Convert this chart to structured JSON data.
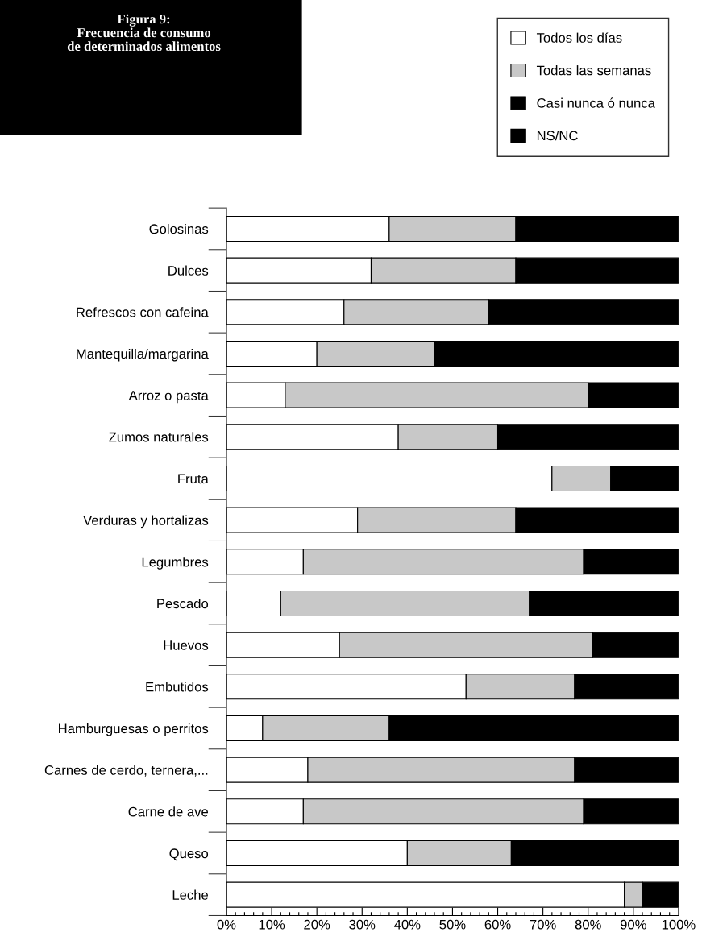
{
  "chart_data": {
    "type": "bar",
    "orientation": "horizontal",
    "stacked": true,
    "title": "Figura 9:\nFrecuencia de consumo\nde determinados alimentos",
    "categories": [
      "Golosinas",
      "Dulces",
      "Refrescos con cafeina",
      "Mantequilla/margarina",
      "Arroz o pasta",
      "Zumos naturales",
      "Fruta",
      "Verduras y hortalizas",
      "Legumbres",
      "Pescado",
      "Huevos",
      "Embutidos",
      "Hamburguesas o perritos",
      "Carnes de cerdo, ternera,...",
      "Carne de ave",
      "Queso",
      "Leche"
    ],
    "series": [
      {
        "name": "Todos los días",
        "color": "#ffffff",
        "values": [
          36,
          32,
          26,
          20,
          13,
          38,
          72,
          29,
          17,
          12,
          25,
          53,
          8,
          18,
          17,
          40,
          88
        ]
      },
      {
        "name": "Todas las semanas",
        "color": "#c8c8c8",
        "values": [
          28,
          32,
          32,
          26,
          67,
          22,
          13,
          35,
          62,
          55,
          56,
          24,
          28,
          59,
          62,
          23,
          4
        ]
      },
      {
        "name": "Casi nunca ó nunca",
        "color": "#000000",
        "values": [
          36,
          36,
          42,
          54,
          20,
          40,
          15,
          36,
          21,
          33,
          19,
          23,
          64,
          23,
          21,
          37,
          8
        ]
      },
      {
        "name": "NS/NC",
        "color": "#000000",
        "values": [
          null,
          null,
          null,
          null,
          null,
          null,
          null,
          null,
          null,
          null,
          null,
          null,
          null,
          null,
          null,
          null,
          null
        ]
      }
    ],
    "xlim": [
      0,
      100
    ],
    "xticks": [
      {
        "value": 0,
        "label": "0%"
      },
      {
        "value": 2,
        "label": null
      },
      {
        "value": 4,
        "label": null
      },
      {
        "value": 6,
        "label": null
      },
      {
        "value": 8,
        "label": null
      },
      {
        "value": 10,
        "label": "10%"
      },
      {
        "value": 12,
        "label": null
      },
      {
        "value": 14,
        "label": null
      },
      {
        "value": 16,
        "label": null
      },
      {
        "value": 18,
        "label": null
      },
      {
        "value": 20,
        "label": "20%"
      },
      {
        "value": 22,
        "label": null
      },
      {
        "value": 24,
        "label": null
      },
      {
        "value": 26,
        "label": null
      },
      {
        "value": 28,
        "label": null
      },
      {
        "value": 30,
        "label": "30%"
      },
      {
        "value": 32,
        "label": null
      },
      {
        "value": 34,
        "label": null
      },
      {
        "value": 36,
        "label": null
      },
      {
        "value": 38,
        "label": null
      },
      {
        "value": 40,
        "label": "40%"
      },
      {
        "value": 42,
        "label": null
      },
      {
        "value": 44,
        "label": null
      },
      {
        "value": 46,
        "label": null
      },
      {
        "value": 48,
        "label": null
      },
      {
        "value": 50,
        "label": "50%"
      },
      {
        "value": 52,
        "label": null
      },
      {
        "value": 54,
        "label": null
      },
      {
        "value": 56,
        "label": null
      },
      {
        "value": 58,
        "label": null
      },
      {
        "value": 60,
        "label": "60%"
      },
      {
        "value": 62,
        "label": null
      },
      {
        "value": 64,
        "label": null
      },
      {
        "value": 66,
        "label": null
      },
      {
        "value": 68,
        "label": null
      },
      {
        "value": 70,
        "label": "70%"
      },
      {
        "value": 72,
        "label": null
      },
      {
        "value": 74,
        "label": null
      },
      {
        "value": 76,
        "label": null
      },
      {
        "value": 78,
        "label": null
      },
      {
        "value": 80,
        "label": "80%"
      },
      {
        "value": 82,
        "label": null
      },
      {
        "value": 84,
        "label": null
      },
      {
        "value": 86,
        "label": null
      },
      {
        "value": 88,
        "label": null
      },
      {
        "value": 90,
        "label": "90%"
      },
      {
        "value": 92,
        "label": null
      },
      {
        "value": 94,
        "label": null
      },
      {
        "value": 96,
        "label": null
      },
      {
        "value": 98,
        "label": null
      },
      {
        "value": 100,
        "label": "100%"
      }
    ],
    "legend": "top right",
    "grid": false
  }
}
